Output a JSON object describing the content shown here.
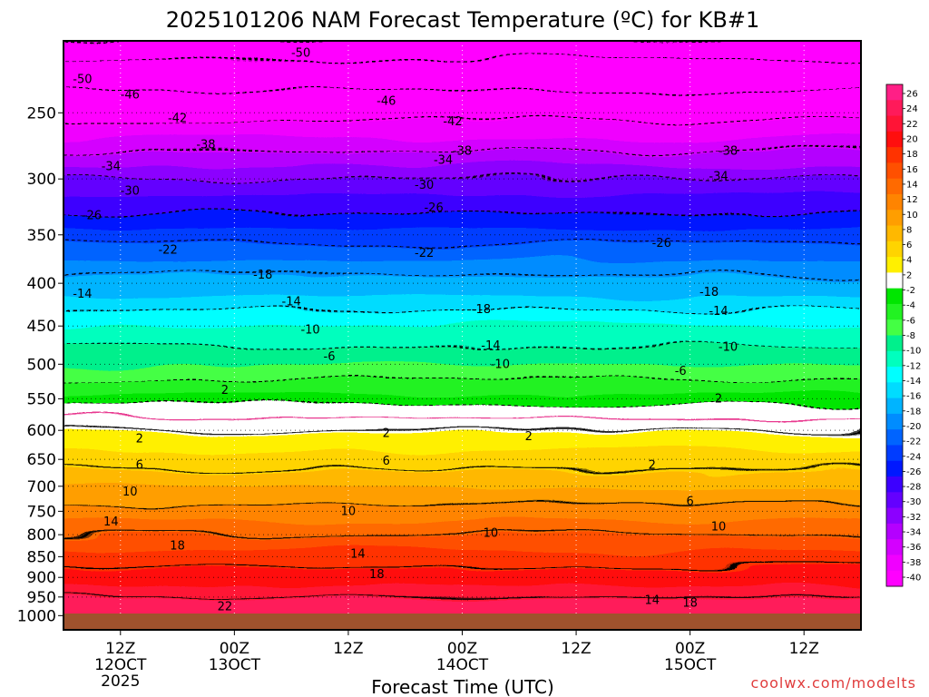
{
  "chart_data": {
    "type": "heatmap",
    "title": "2025101206 NAM Forecast Temperature (ºC) for KB#1",
    "xlabel": "Forecast Time (UTC)",
    "credit": "coolwx.com/modelts",
    "y_axis": {
      "quantity": "pressure (hPa)",
      "direction": "decreasing upward",
      "ylim": [
        1040,
        205
      ],
      "ticks": [
        1000,
        950,
        900,
        850,
        800,
        750,
        700,
        650,
        600,
        550,
        500,
        450,
        400,
        350,
        300,
        250
      ]
    },
    "x_axis": {
      "ticks": [
        {
          "hours": 6,
          "l1": "12Z",
          "l2": "12OCT",
          "l3": "2025"
        },
        {
          "hours": 18,
          "l1": "00Z",
          "l2": "13OCT",
          "l3": ""
        },
        {
          "hours": 30,
          "l1": "12Z",
          "l2": "",
          "l3": ""
        },
        {
          "hours": 42,
          "l1": "00Z",
          "l2": "14OCT",
          "l3": ""
        },
        {
          "hours": 54,
          "l1": "12Z",
          "l2": "",
          "l3": ""
        },
        {
          "hours": 66,
          "l1": "00Z",
          "l2": "15OCT",
          "l3": ""
        },
        {
          "hours": 78,
          "l1": "12Z",
          "l2": "",
          "l3": ""
        }
      ],
      "xlim_hours": [
        0,
        84
      ]
    },
    "grid": true,
    "colorbar": {
      "placement": "right",
      "labels": [
        "26",
        "24",
        "22",
        "20",
        "18",
        "16",
        "14",
        "12",
        "10",
        "8",
        "6",
        "4",
        "2",
        "-2",
        "-4",
        "-6",
        "-8",
        "-10",
        "-12",
        "-14",
        "-16",
        "-18",
        "-20",
        "-22",
        "-24",
        "-26",
        "-28",
        "-30",
        "-32",
        "-34",
        "-36",
        "-38",
        "-40"
      ],
      "colors": [
        "#ff1f86",
        "#ff1a5a",
        "#ff1436",
        "#ff0e0e",
        "#ff3300",
        "#ff5000",
        "#ff6a00",
        "#ff8400",
        "#ff9e00",
        "#ffb800",
        "#ffd400",
        "#fff000",
        "#ffffff",
        "#00e600",
        "#22f222",
        "#44ff44",
        "#00f08c",
        "#00ffbe",
        "#00ffff",
        "#00dcff",
        "#00b4ff",
        "#008cff",
        "#0064ff",
        "#003cff",
        "#0018ff",
        "#3c00ff",
        "#6400ff",
        "#8c00ff",
        "#b400ff",
        "#d400ff",
        "#f000ff",
        "#ff00ff"
      ]
    },
    "contour_labels": [
      {
        "v": "-50",
        "h": 2,
        "p": 228
      },
      {
        "v": "-50",
        "h": 25,
        "p": 212
      },
      {
        "v": "-46",
        "h": 7,
        "p": 238
      },
      {
        "v": "-46",
        "h": 34,
        "p": 242
      },
      {
        "v": "-42",
        "h": 12,
        "p": 254
      },
      {
        "v": "-42",
        "h": 41,
        "p": 256
      },
      {
        "v": "-38",
        "h": 15,
        "p": 273
      },
      {
        "v": "-38",
        "h": 42,
        "p": 278
      },
      {
        "v": "-38",
        "h": 70,
        "p": 278
      },
      {
        "v": "-34",
        "h": 5,
        "p": 290
      },
      {
        "v": "-34",
        "h": 40,
        "p": 285
      },
      {
        "v": "-34",
        "h": 69,
        "p": 298
      },
      {
        "v": "-30",
        "h": 7,
        "p": 310
      },
      {
        "v": "-30",
        "h": 38,
        "p": 305
      },
      {
        "v": "-26",
        "h": 3,
        "p": 332
      },
      {
        "v": "-26",
        "h": 39,
        "p": 325
      },
      {
        "v": "-26",
        "h": 63,
        "p": 358
      },
      {
        "v": "-22",
        "h": 11,
        "p": 365
      },
      {
        "v": "-22",
        "h": 38,
        "p": 368
      },
      {
        "v": "-18",
        "h": 21,
        "p": 391
      },
      {
        "v": "-18",
        "h": 44,
        "p": 430
      },
      {
        "v": "-18",
        "h": 68,
        "p": 410
      },
      {
        "v": "-14",
        "h": 2,
        "p": 412
      },
      {
        "v": "-14",
        "h": 24,
        "p": 421
      },
      {
        "v": "-14",
        "h": 45,
        "p": 475
      },
      {
        "v": "-14",
        "h": 69,
        "p": 432
      },
      {
        "v": "-10",
        "h": 26,
        "p": 455
      },
      {
        "v": "-10",
        "h": 46,
        "p": 500
      },
      {
        "v": "-10",
        "h": 70,
        "p": 477
      },
      {
        "v": "-6",
        "h": 28,
        "p": 490
      },
      {
        "v": "-6",
        "h": 65,
        "p": 510
      },
      {
        "v": "2",
        "h": 17,
        "p": 537
      },
      {
        "v": "2",
        "h": 49,
        "p": 610
      },
      {
        "v": "2",
        "h": 69,
        "p": 550
      },
      {
        "v": "2",
        "h": 8,
        "p": 614
      },
      {
        "v": "2",
        "h": 34,
        "p": 605
      },
      {
        "v": "2",
        "h": 62,
        "p": 660
      },
      {
        "v": "6",
        "h": 8,
        "p": 660
      },
      {
        "v": "6",
        "h": 34,
        "p": 653
      },
      {
        "v": "6",
        "h": 66,
        "p": 730
      },
      {
        "v": "10",
        "h": 7,
        "p": 711
      },
      {
        "v": "10",
        "h": 30,
        "p": 750
      },
      {
        "v": "10",
        "h": 45,
        "p": 797
      },
      {
        "v": "10",
        "h": 69,
        "p": 783
      },
      {
        "v": "14",
        "h": 5,
        "p": 772
      },
      {
        "v": "14",
        "h": 31,
        "p": 844
      },
      {
        "v": "14",
        "h": 62,
        "p": 959
      },
      {
        "v": "18",
        "h": 12,
        "p": 825
      },
      {
        "v": "18",
        "h": 33,
        "p": 893
      },
      {
        "v": "18",
        "h": 66,
        "p": 966
      },
      {
        "v": "22",
        "h": 17,
        "p": 976
      }
    ]
  }
}
